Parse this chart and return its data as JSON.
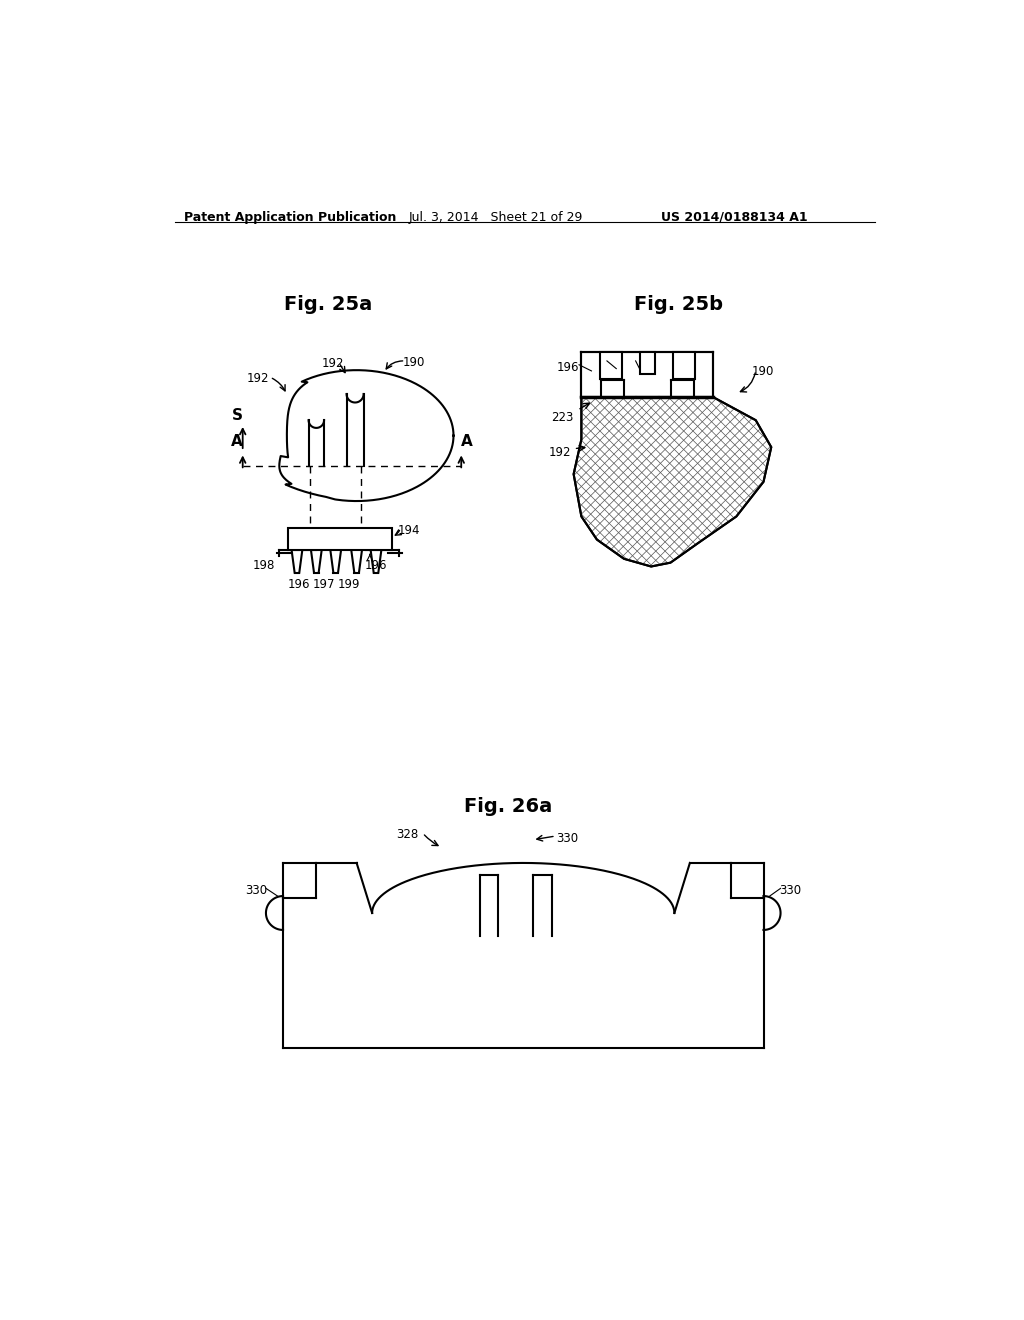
{
  "background_color": "#ffffff",
  "header_left": "Patent Application Publication",
  "header_center": "Jul. 3, 2014   Sheet 21 of 29",
  "header_right": "US 2014/0188134 A1",
  "fig25a_title": "Fig. 25a",
  "fig25b_title": "Fig. 25b",
  "fig26a_title": "Fig. 26a",
  "line_color": "#000000"
}
